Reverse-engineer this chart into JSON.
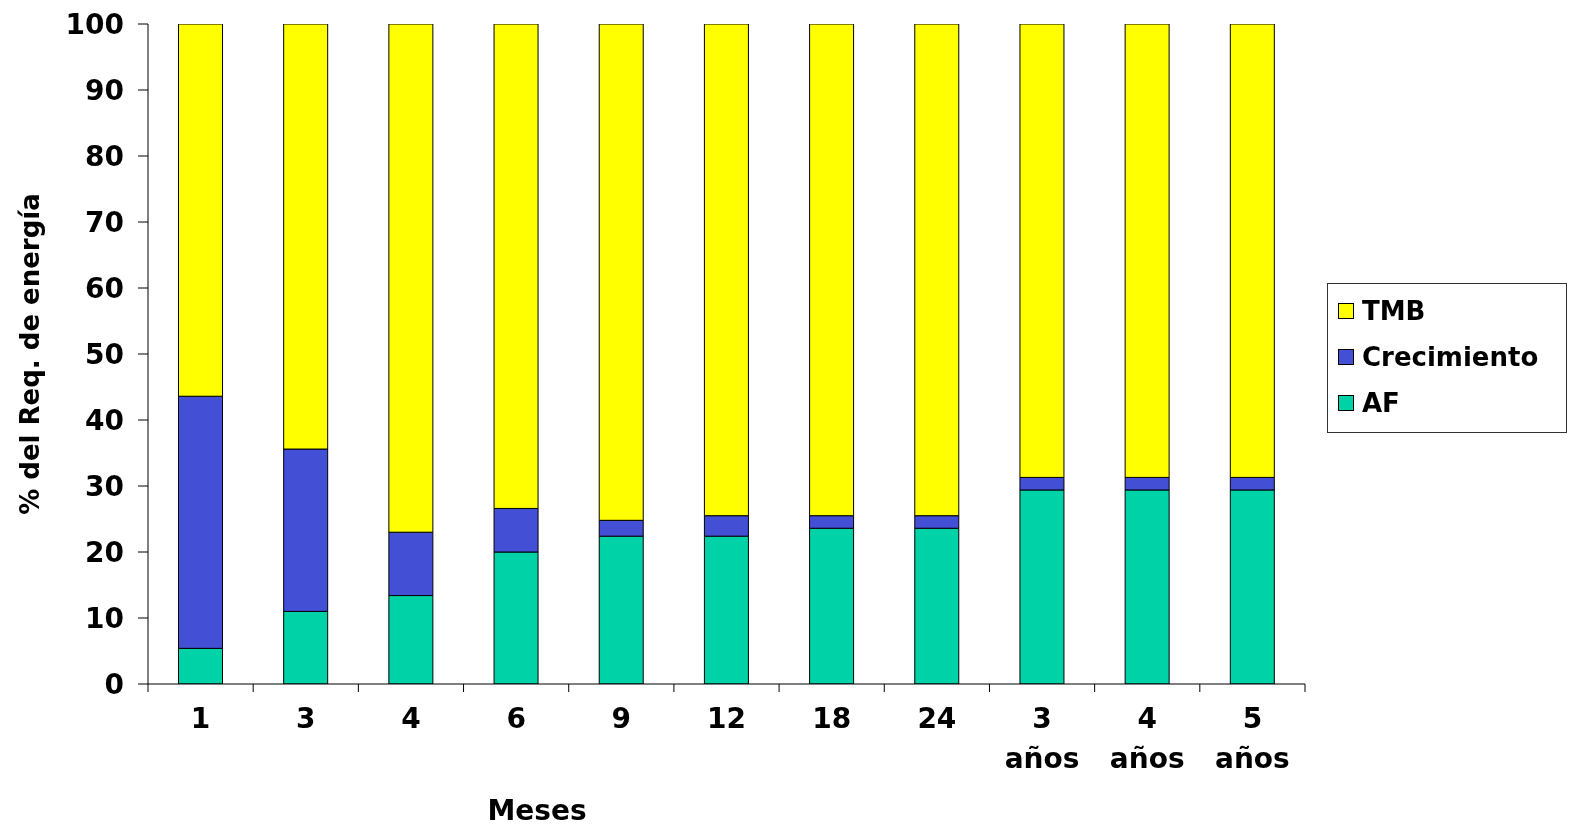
{
  "chart_data": {
    "type": "bar",
    "stacked": true,
    "xlabel": "Meses",
    "ylabel": "% del Req. de energía",
    "categories": [
      "1",
      "3",
      "4",
      "6",
      "9",
      "12",
      "18",
      "24",
      "3 años",
      "4 años",
      "5 años"
    ],
    "series": [
      {
        "name": "AF",
        "color": "#00d2a8",
        "values": [
          5.4,
          11.0,
          13.4,
          20.0,
          22.4,
          22.4,
          23.6,
          23.6,
          29.4,
          29.4,
          29.4
        ]
      },
      {
        "name": "Crecimiento",
        "color": "#4350d5",
        "values": [
          38.2,
          24.6,
          9.6,
          6.6,
          2.4,
          3.1,
          1.9,
          1.9,
          1.9,
          1.9,
          1.9
        ]
      },
      {
        "name": "TMB",
        "color": "#ffff00",
        "values": [
          56.4,
          64.4,
          77.0,
          73.4,
          75.2,
          74.5,
          74.5,
          74.5,
          68.7,
          68.7,
          68.7
        ]
      }
    ],
    "ylim": [
      0,
      100
    ],
    "yticks": [
      0,
      10,
      20,
      30,
      40,
      50,
      60,
      70,
      80,
      90,
      100
    ],
    "grid": false,
    "legend": "right"
  }
}
